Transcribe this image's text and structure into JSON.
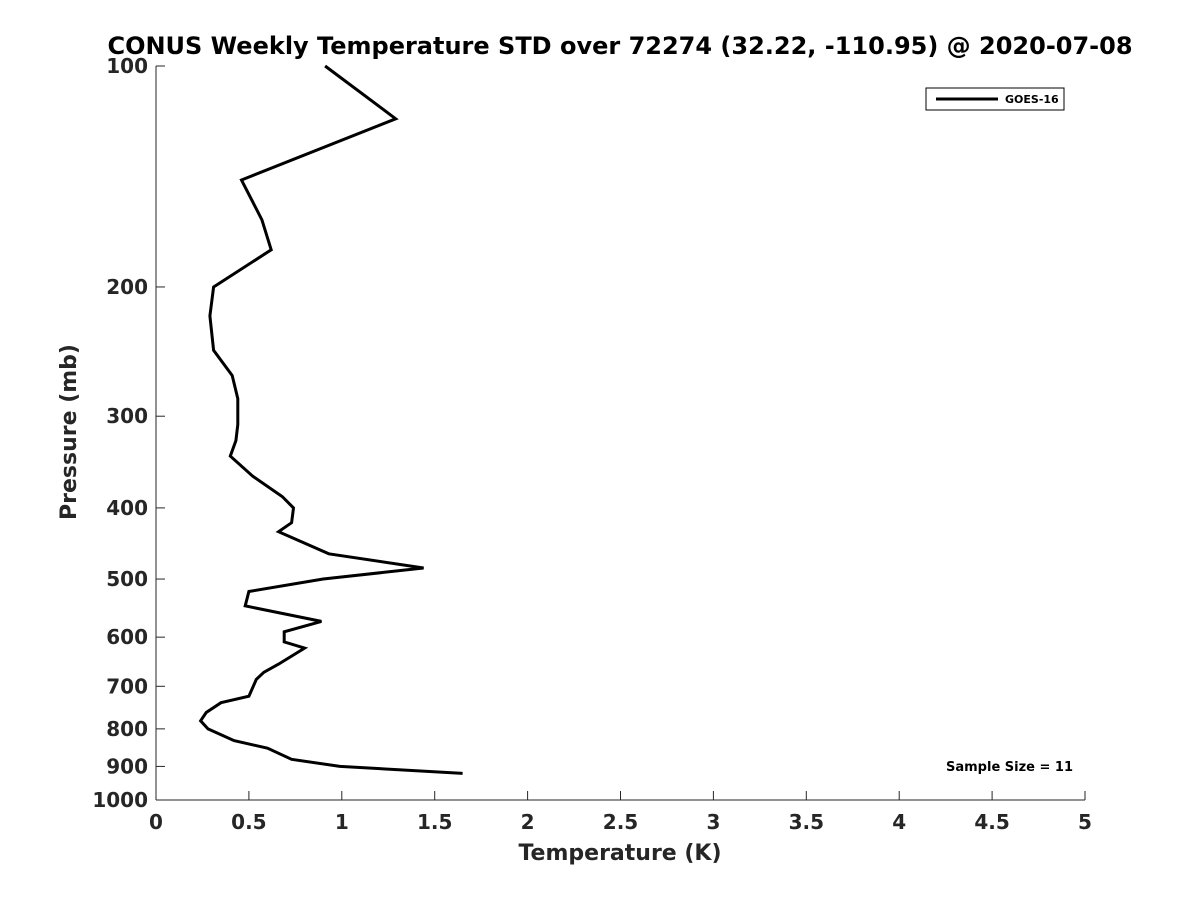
{
  "colors": {
    "background": "#ffffff",
    "axis": "#262626",
    "series": "#000000"
  },
  "chart_data": {
    "type": "line",
    "title": "CONUS Weekly Temperature STD over 72274 (32.22, -110.95) @ 2020-07-08",
    "xlabel": "Temperature (K)",
    "ylabel": "Pressure (mb)",
    "xlim": [
      0,
      5
    ],
    "ylim": [
      1000,
      100
    ],
    "y_scale": "log",
    "y_reversed": true,
    "grid": false,
    "legend_position": "top-right",
    "x_ticks": [
      0,
      0.5,
      1,
      1.5,
      2,
      2.5,
      3,
      3.5,
      4,
      4.5,
      5
    ],
    "x_tick_labels": [
      "0",
      "0.5",
      "1",
      "1.5",
      "2",
      "2.5",
      "3",
      "3.5",
      "4",
      "4.5",
      "5"
    ],
    "y_ticks": [
      100,
      200,
      300,
      400,
      500,
      600,
      700,
      800,
      900,
      1000
    ],
    "y_tick_labels": [
      "100",
      "200",
      "300",
      "400",
      "500",
      "600",
      "700",
      "800",
      "900",
      "1000"
    ],
    "annotation": "Sample Size = 11",
    "series": [
      {
        "name": "GOES-16",
        "color": "#000000",
        "points": [
          {
            "x": 0.91,
            "y": 100
          },
          {
            "x": 1.29,
            "y": 118
          },
          {
            "x": 0.46,
            "y": 143
          },
          {
            "x": 0.57,
            "y": 162
          },
          {
            "x": 0.62,
            "y": 178
          },
          {
            "x": 0.31,
            "y": 200
          },
          {
            "x": 0.29,
            "y": 219
          },
          {
            "x": 0.31,
            "y": 244
          },
          {
            "x": 0.41,
            "y": 264
          },
          {
            "x": 0.44,
            "y": 284
          },
          {
            "x": 0.44,
            "y": 308
          },
          {
            "x": 0.43,
            "y": 324
          },
          {
            "x": 0.4,
            "y": 340
          },
          {
            "x": 0.52,
            "y": 362
          },
          {
            "x": 0.68,
            "y": 386
          },
          {
            "x": 0.74,
            "y": 400
          },
          {
            "x": 0.73,
            "y": 419
          },
          {
            "x": 0.66,
            "y": 431
          },
          {
            "x": 0.93,
            "y": 462
          },
          {
            "x": 1.44,
            "y": 483
          },
          {
            "x": 0.9,
            "y": 500
          },
          {
            "x": 0.5,
            "y": 520
          },
          {
            "x": 0.48,
            "y": 544
          },
          {
            "x": 0.89,
            "y": 571
          },
          {
            "x": 0.69,
            "y": 590
          },
          {
            "x": 0.69,
            "y": 609
          },
          {
            "x": 0.8,
            "y": 621
          },
          {
            "x": 0.66,
            "y": 653
          },
          {
            "x": 0.58,
            "y": 670
          },
          {
            "x": 0.54,
            "y": 685
          },
          {
            "x": 0.5,
            "y": 722
          },
          {
            "x": 0.35,
            "y": 737
          },
          {
            "x": 0.27,
            "y": 760
          },
          {
            "x": 0.24,
            "y": 780
          },
          {
            "x": 0.28,
            "y": 800
          },
          {
            "x": 0.42,
            "y": 830
          },
          {
            "x": 0.6,
            "y": 850
          },
          {
            "x": 0.73,
            "y": 880
          },
          {
            "x": 0.99,
            "y": 900
          },
          {
            "x": 1.65,
            "y": 920
          }
        ]
      }
    ]
  }
}
